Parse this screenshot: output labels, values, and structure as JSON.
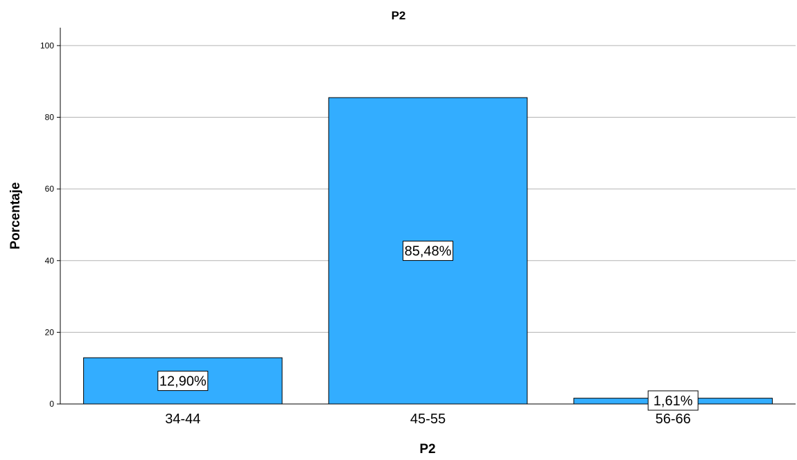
{
  "chart_data": {
    "type": "bar",
    "title": "P2",
    "xlabel": "P2",
    "ylabel": "Porcentaje",
    "categories": [
      "34-44",
      "45-55",
      "56-66"
    ],
    "values": [
      12.9,
      85.48,
      1.61
    ],
    "data_labels": [
      "12,90%",
      "85,48%",
      "1,61%"
    ],
    "ylim": [
      0,
      105
    ],
    "yticks": [
      0,
      20,
      40,
      60,
      80,
      100
    ],
    "grid": true,
    "bar_color": "#33adff",
    "bar_stroke": "#000000",
    "gridline_color": "#b3b3b3"
  }
}
